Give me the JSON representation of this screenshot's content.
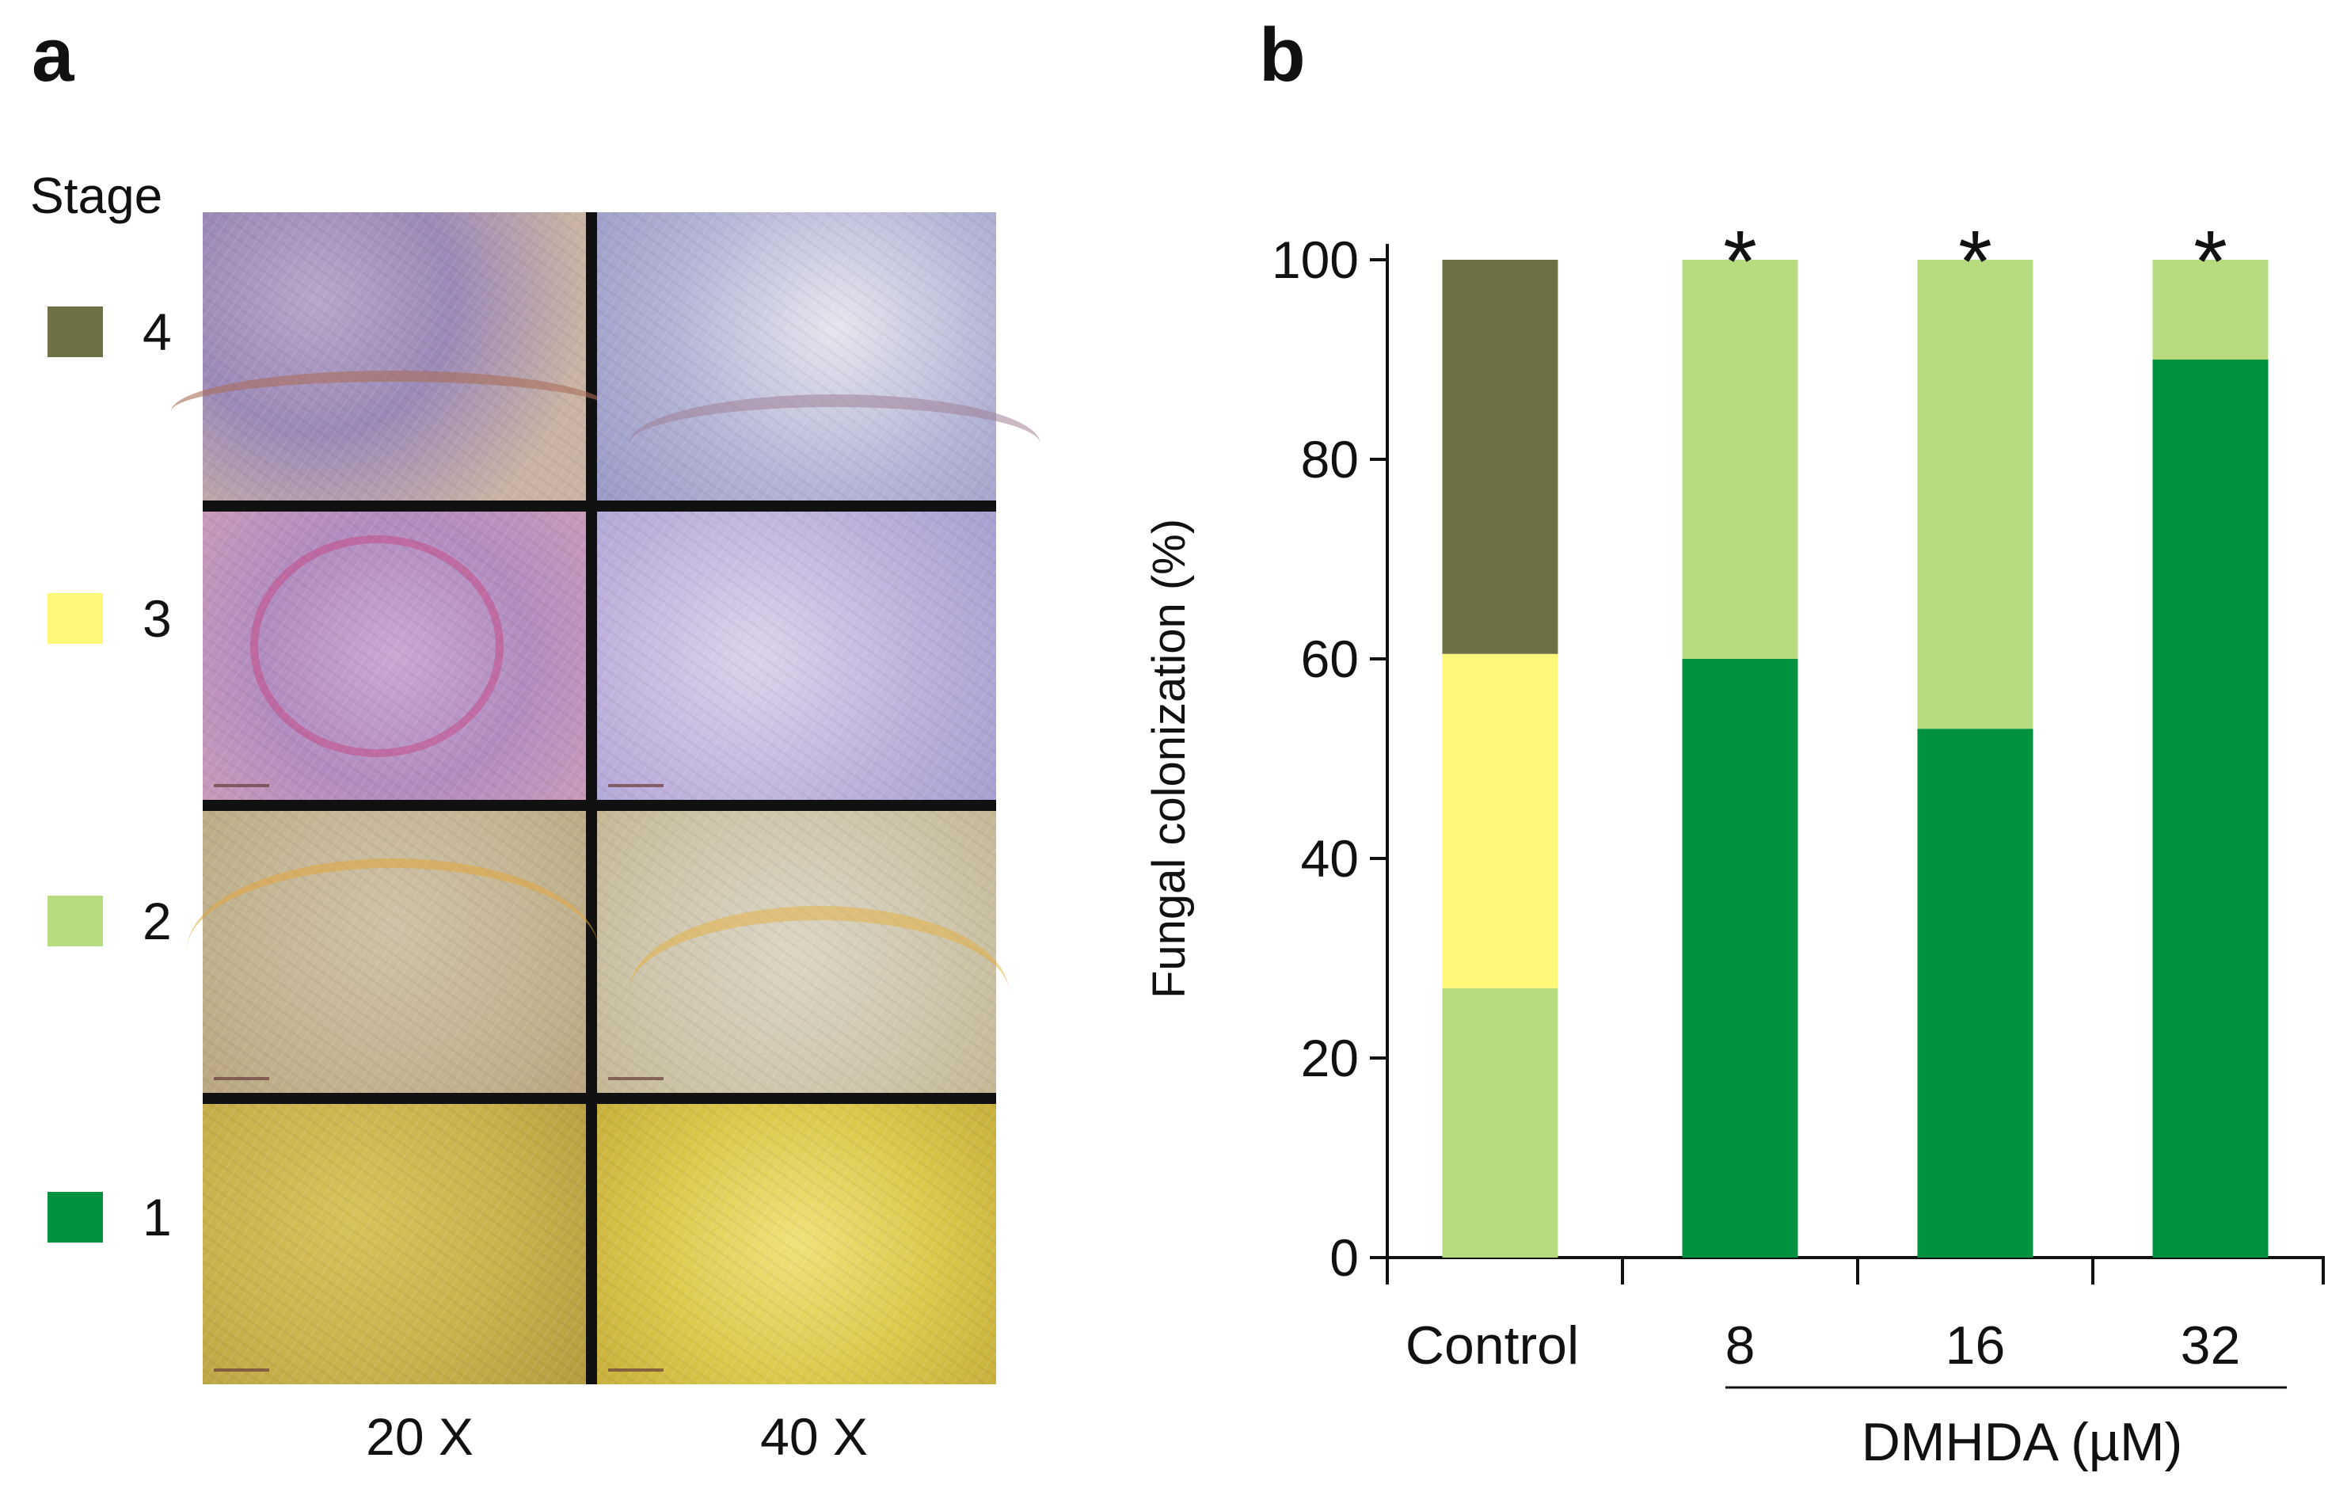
{
  "panel_a": {
    "letter": "a",
    "legend_title": "Stage",
    "legend": [
      {
        "label": "4",
        "color": "#707046"
      },
      {
        "label": "3",
        "color": "#FDF77A"
      },
      {
        "label": "2",
        "color": "#B7DC80"
      },
      {
        "label": "1",
        "color": "#00923F"
      }
    ],
    "magnifications": [
      "20 X",
      "40 X"
    ]
  },
  "panel_b": {
    "letter": "b"
  },
  "chart_data": {
    "type": "bar",
    "stacked": true,
    "categories": [
      "Control",
      "8",
      "16",
      "32"
    ],
    "group_label": "DMHDA (µM)",
    "ylabel": "Fungal colonization  (%)",
    "xlabel": "",
    "ylim": [
      0,
      100
    ],
    "yticks": [
      "0",
      "20",
      "40",
      "60",
      "80",
      "100"
    ],
    "significance": [
      "",
      "*",
      "*",
      "*"
    ],
    "series": [
      {
        "name": "1",
        "color": "#00923F",
        "values": [
          0,
          60,
          53,
          90
        ]
      },
      {
        "name": "2",
        "color": "#B7DC80",
        "values": [
          27,
          40,
          47,
          10
        ]
      },
      {
        "name": "3",
        "color": "#FDF77A",
        "values": [
          33.5,
          0,
          0,
          0
        ]
      },
      {
        "name": "4",
        "color": "#707046",
        "values": [
          39.5,
          0,
          0,
          0
        ]
      }
    ]
  }
}
